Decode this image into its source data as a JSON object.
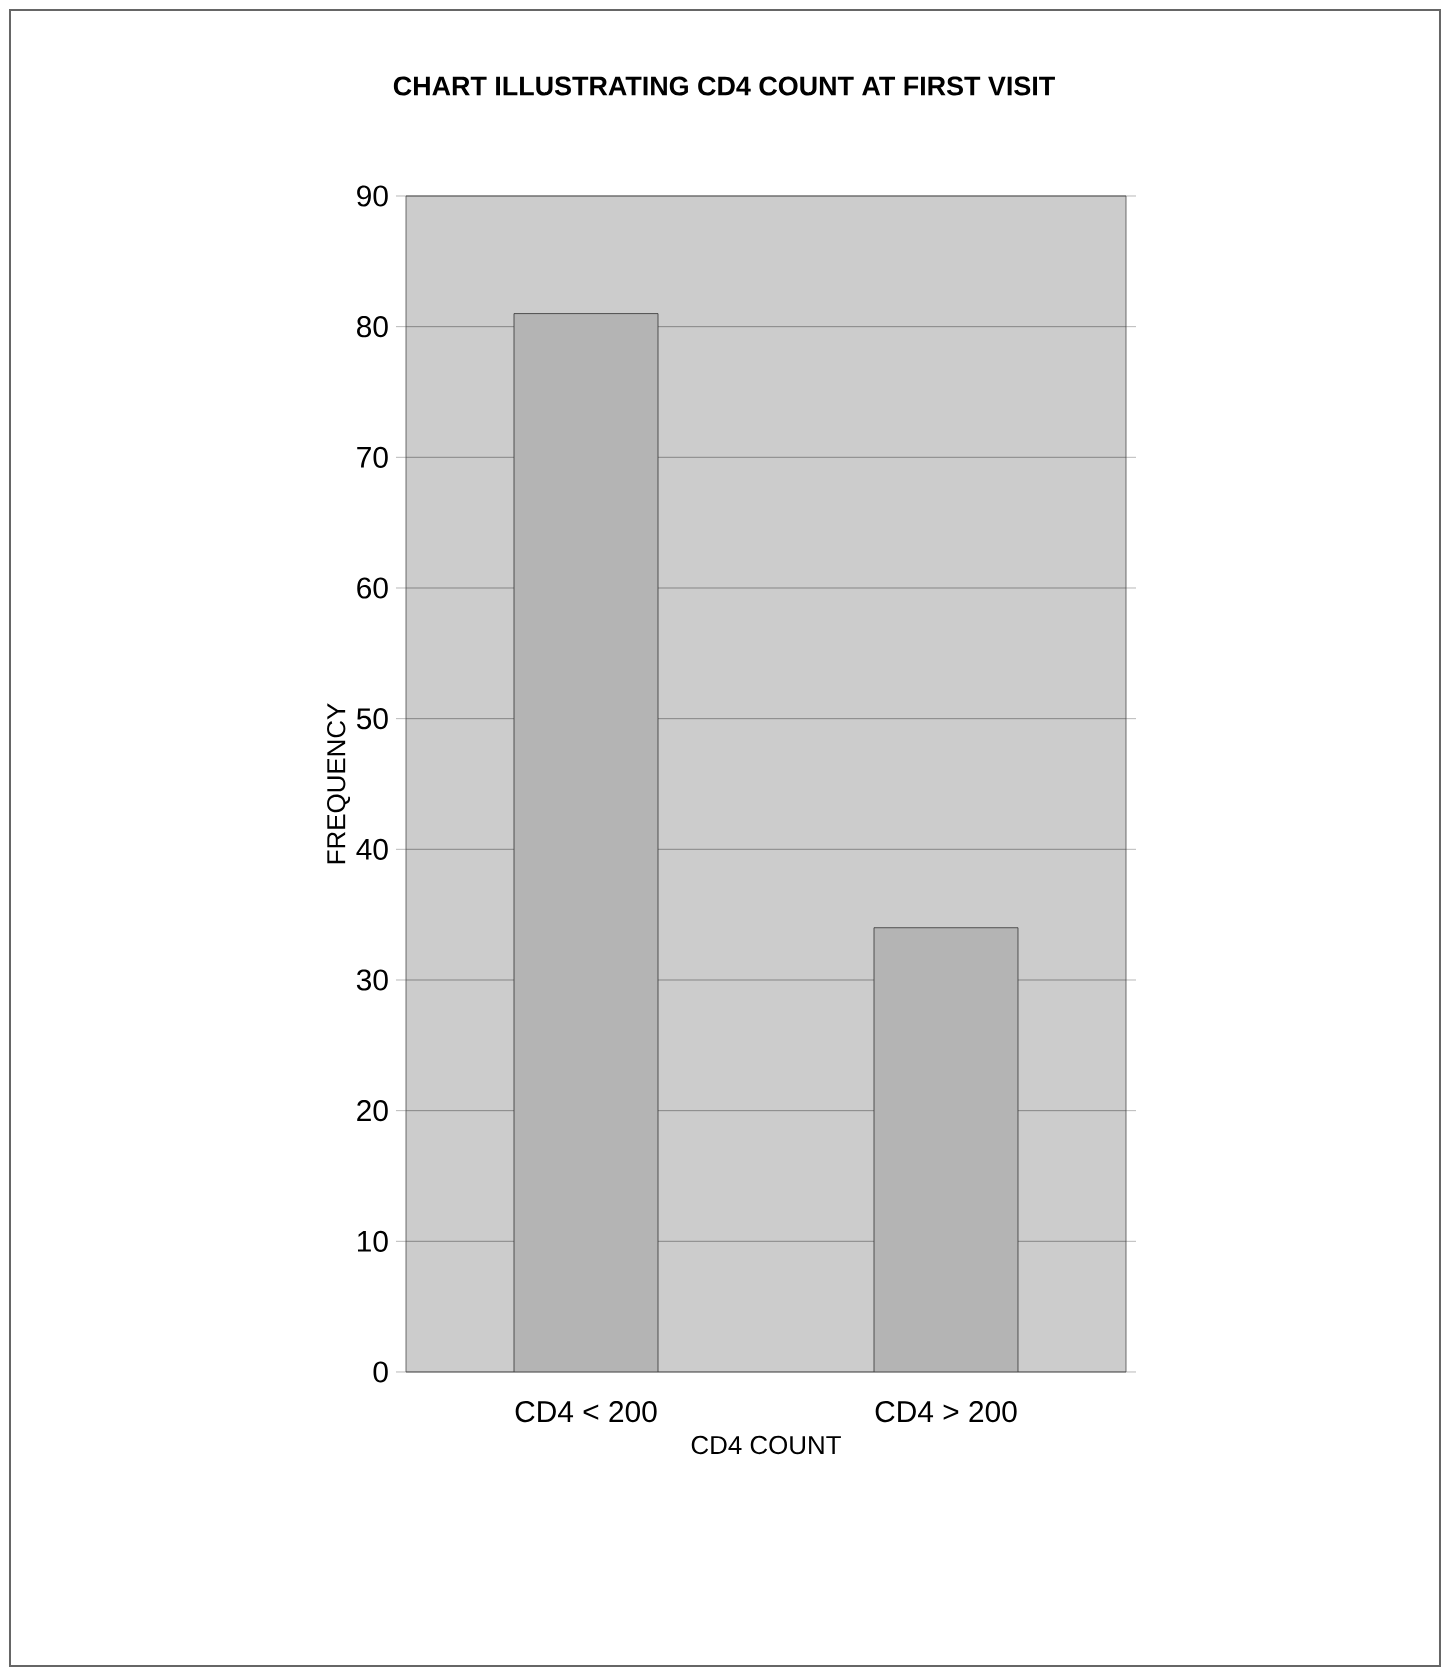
{
  "chart_data": {
    "type": "bar",
    "title": "CHART ILLUSTRATING CD4 COUNT AT FIRST VISIT",
    "xlabel": "CD4 COUNT",
    "ylabel": "FREQUENCY",
    "categories": [
      "CD4 < 200",
      "CD4 > 200"
    ],
    "values": [
      81,
      34
    ],
    "color": "#b4b4b4",
    "ylim": [
      0,
      90
    ],
    "yticks": [
      0,
      10,
      20,
      30,
      40,
      50,
      60,
      70,
      80,
      90
    ],
    "grid": "y"
  }
}
